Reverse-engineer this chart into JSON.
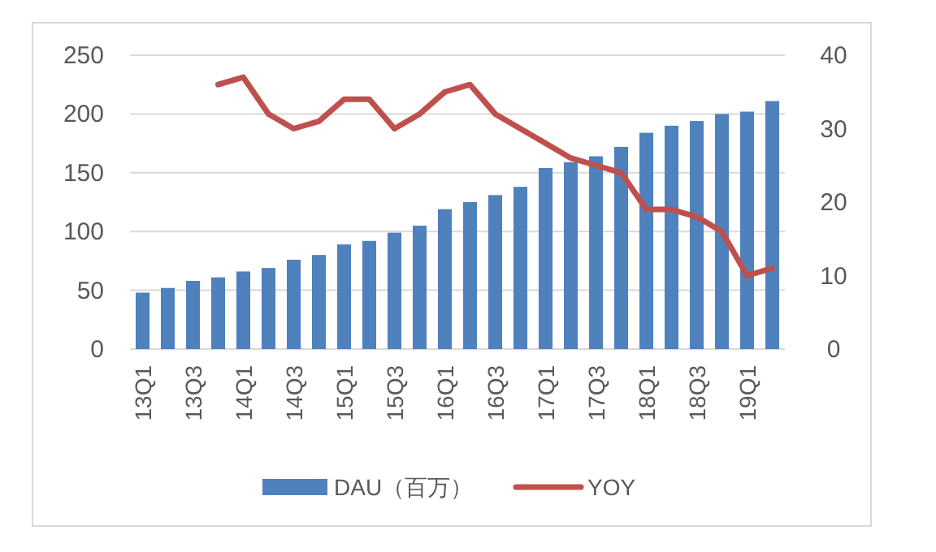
{
  "chart_data": {
    "type": "bar",
    "categories": [
      "13Q1",
      null,
      "13Q3",
      null,
      "14Q1",
      null,
      "14Q3",
      null,
      "15Q1",
      null,
      "15Q3",
      null,
      "16Q1",
      null,
      "16Q3",
      null,
      "17Q1",
      null,
      "17Q3",
      null,
      "18Q1",
      null,
      "18Q3",
      null,
      "19Q1",
      null
    ],
    "series": [
      {
        "name": "DAU（百万）",
        "color": "#4f81bd",
        "values": [
          48,
          52,
          58,
          61,
          66,
          69,
          76,
          80,
          89,
          92,
          99,
          105,
          119,
          125,
          131,
          138,
          154,
          159,
          164,
          172,
          184,
          190,
          194,
          200,
          202,
          211
        ]
      },
      {
        "name": "YOY",
        "type": "line",
        "axis": "y2",
        "color": "#c0504d",
        "values": [
          null,
          null,
          null,
          36,
          37,
          32,
          30,
          31,
          34,
          34,
          30,
          32,
          35,
          36,
          32,
          30,
          28,
          26,
          25,
          24,
          19,
          19,
          18,
          16,
          10,
          11
        ]
      }
    ],
    "ylim": [
      0,
      250
    ],
    "yticks": [
      0,
      50,
      100,
      150,
      200,
      250
    ],
    "y2lim": [
      0,
      40
    ],
    "y2ticks": [
      0,
      10,
      20,
      30,
      40
    ],
    "grid": "y",
    "legend": "bottom",
    "marker": "none"
  }
}
